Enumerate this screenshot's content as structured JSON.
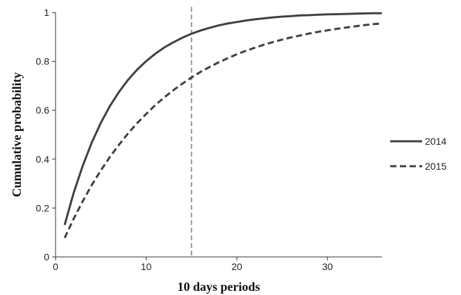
{
  "chart_data": {
    "type": "line",
    "title": "",
    "xlabel": "10 days periods",
    "ylabel": "Cumulative probability",
    "xlim": [
      0,
      36
    ],
    "ylim": [
      0,
      1
    ],
    "x_ticks": [
      "0",
      "10",
      "20",
      "30"
    ],
    "y_ticks": [
      "0",
      "0.2",
      "0.4",
      "0.6",
      "0.8",
      "1"
    ],
    "grid": false,
    "legend": "right",
    "reference_line": {
      "x": 15,
      "style": "dashed",
      "color": "#999999"
    },
    "series": [
      {
        "name": "2014",
        "style": "solid",
        "color": "#404040",
        "x": [
          1,
          2,
          3,
          4,
          5,
          6,
          7,
          8,
          9,
          10,
          11,
          12,
          13,
          14,
          15,
          16,
          17,
          18,
          19,
          20,
          21,
          22,
          23,
          24,
          25,
          26,
          27,
          28,
          29,
          30,
          31,
          32,
          33,
          34,
          35,
          36
        ],
        "values": [
          0.131,
          0.262,
          0.373,
          0.468,
          0.549,
          0.617,
          0.675,
          0.724,
          0.766,
          0.801,
          0.831,
          0.857,
          0.878,
          0.897,
          0.913,
          0.926,
          0.937,
          0.947,
          0.955,
          0.961,
          0.967,
          0.972,
          0.976,
          0.98,
          0.983,
          0.985,
          0.988,
          0.989,
          0.991,
          0.992,
          0.993,
          0.994,
          0.995,
          0.996,
          0.997,
          0.997
        ]
      },
      {
        "name": "2015",
        "style": "dashed",
        "color": "#404040",
        "x": [
          1,
          2,
          3,
          4,
          5,
          6,
          7,
          8,
          9,
          10,
          11,
          12,
          13,
          14,
          15,
          16,
          17,
          18,
          19,
          20,
          21,
          22,
          23,
          24,
          25,
          26,
          27,
          28,
          29,
          30,
          31,
          32,
          33,
          34,
          35,
          36
        ],
        "values": [
          0.078,
          0.156,
          0.228,
          0.294,
          0.354,
          0.409,
          0.459,
          0.505,
          0.547,
          0.585,
          0.621,
          0.653,
          0.682,
          0.709,
          0.734,
          0.757,
          0.777,
          0.796,
          0.813,
          0.829,
          0.843,
          0.856,
          0.868,
          0.879,
          0.889,
          0.898,
          0.906,
          0.914,
          0.921,
          0.927,
          0.933,
          0.938,
          0.943,
          0.948,
          0.952,
          0.955
        ]
      }
    ]
  }
}
